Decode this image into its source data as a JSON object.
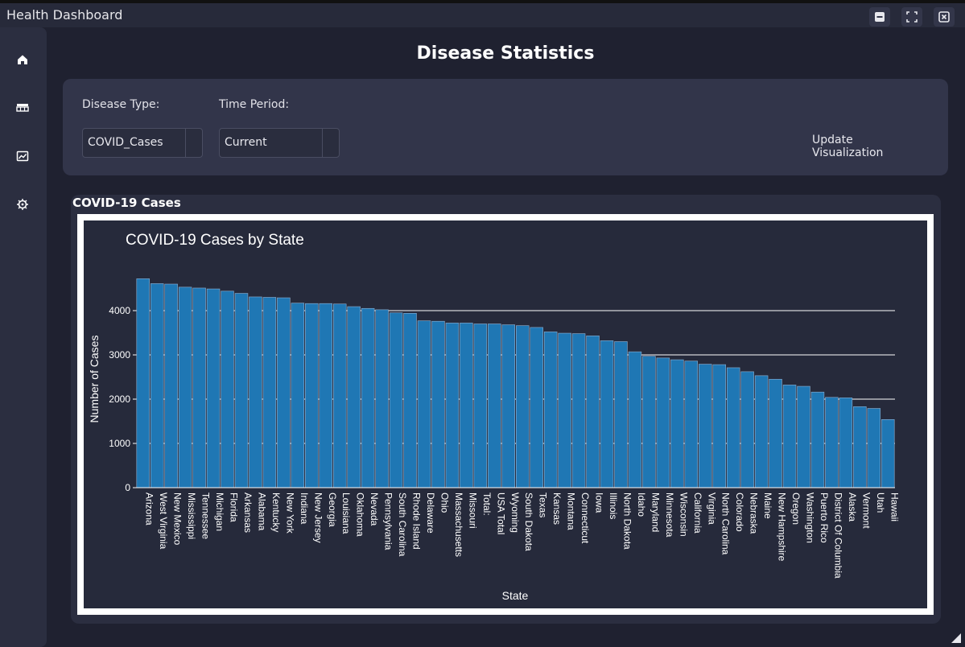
{
  "window": {
    "title": "Health Dashboard"
  },
  "page": {
    "heading": "Disease Statistics"
  },
  "controls": {
    "disease_label": "Disease Type:",
    "disease_value": "COVID_Cases",
    "period_label": "Time Period:",
    "period_value": "Current",
    "update_label": "Update Visualization"
  },
  "panel": {
    "title": "COVID-19 Cases"
  },
  "sidebar": {
    "icons": [
      "home-icon",
      "table-icon",
      "chart-icon",
      "virus-icon"
    ]
  },
  "chart_data": {
    "type": "bar",
    "title": "COVID-19 Cases by State",
    "xlabel": "State",
    "ylabel": "Number of Cases",
    "ylim": [
      0,
      4800
    ],
    "yticks": [
      0,
      1000,
      2000,
      3000,
      4000
    ],
    "grid": true,
    "bar_color": "#1f77b4",
    "categories": [
      "Arizona",
      "West Virginia",
      "New Mexico",
      "Mississippi",
      "Tennessee",
      "Michigan",
      "Florida",
      "Arkansas",
      "Alabama",
      "Kentucky",
      "New York",
      "Indiana",
      "New Jersey",
      "Georgia",
      "Louisiana",
      "Oklahoma",
      "Nevada",
      "Pennsylvania",
      "South Carolina",
      "Rhode Island",
      "Delaware",
      "Ohio",
      "Massachusetts",
      "Missouri",
      "Total:",
      "USA Total",
      "Wyoming",
      "South Dakota",
      "Texas",
      "Kansas",
      "Montana",
      "Connecticut",
      "Iowa",
      "Illinois",
      "North Dakota",
      "Idaho",
      "Maryland",
      "Minnesota",
      "Wisconsin",
      "California",
      "Virginia",
      "North Carolina",
      "Colorado",
      "Nebraska",
      "Maine",
      "New Hampshire",
      "Oregon",
      "Washington",
      "Puerto Rico",
      "District Of Columbia",
      "Alaska",
      "Vermont",
      "Utah",
      "Hawaii"
    ],
    "values": [
      4720,
      4610,
      4600,
      4530,
      4510,
      4490,
      4440,
      4390,
      4310,
      4300,
      4290,
      4170,
      4160,
      4160,
      4150,
      4090,
      4050,
      4020,
      3950,
      3940,
      3770,
      3760,
      3720,
      3720,
      3700,
      3700,
      3680,
      3660,
      3620,
      3520,
      3490,
      3480,
      3430,
      3320,
      3300,
      3070,
      2970,
      2930,
      2890,
      2860,
      2790,
      2780,
      2710,
      2620,
      2530,
      2450,
      2320,
      2290,
      2160,
      2040,
      2030,
      1830,
      1790,
      1540
    ]
  }
}
